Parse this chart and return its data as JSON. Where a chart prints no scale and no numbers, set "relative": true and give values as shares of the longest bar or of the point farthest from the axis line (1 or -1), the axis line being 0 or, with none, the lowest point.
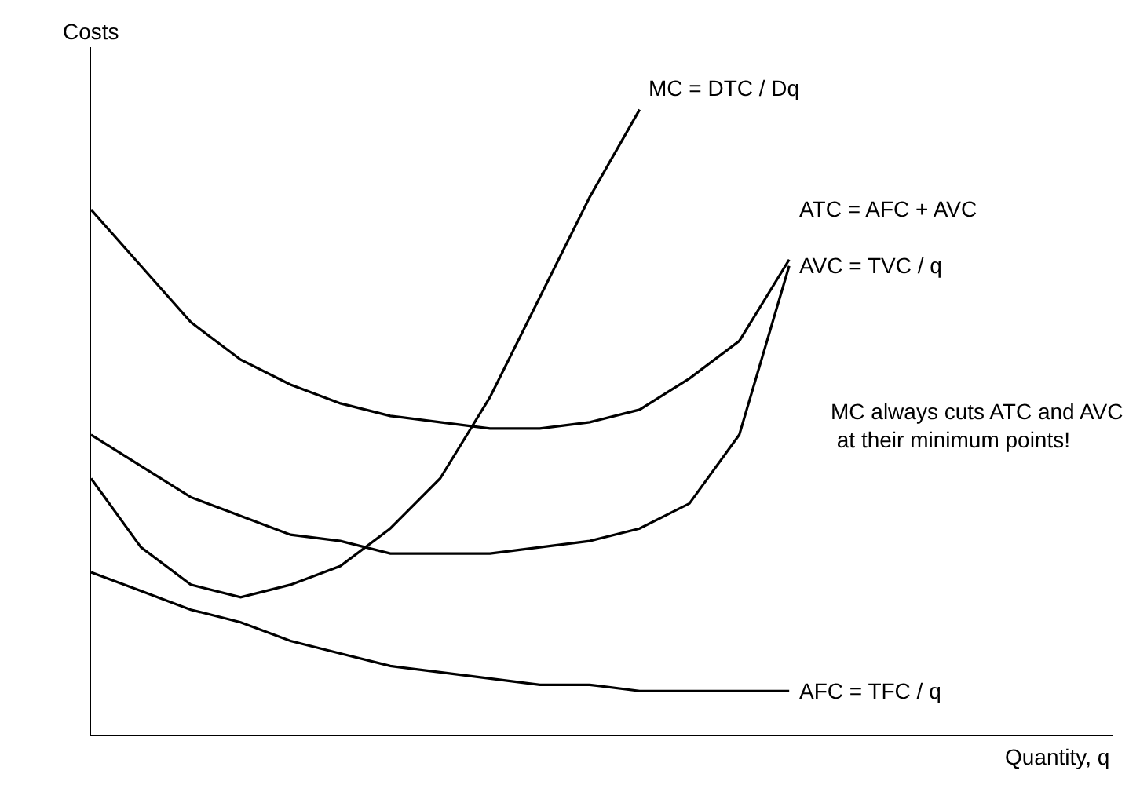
{
  "chart_data": {
    "type": "line",
    "relative": true,
    "ylabel": "Costs",
    "xlabel": "Quantity, q",
    "legend": false,
    "marker": "none",
    "line_style": "solid",
    "categories": [
      null,
      null,
      null,
      null,
      null,
      null,
      null,
      null,
      null,
      null,
      null,
      null,
      null,
      null,
      null,
      null,
      null,
      null,
      null,
      null,
      null
    ],
    "annotations": [
      "MC always cuts ATC and AVC\n at their minimum points!"
    ],
    "series": [
      {
        "name": "MC = DTC / Dq",
        "color": "#000000",
        "values": [
          0.41,
          0.3,
          0.24,
          0.22,
          0.24,
          0.27,
          0.33,
          0.41,
          0.54,
          0.7,
          0.86,
          1,
          null,
          null,
          null,
          null,
          null,
          null,
          null,
          null,
          null
        ]
      },
      {
        "name": "ATC = AFC + AVC",
        "color": "#000000",
        "values": [
          0.84,
          0.75,
          0.66,
          0.6,
          0.56,
          0.53,
          0.51,
          0.5,
          0.49,
          0.49,
          0.5,
          0.52,
          0.57,
          0.63,
          0.76,
          null,
          null,
          null,
          null,
          null,
          null
        ]
      },
      {
        "name": "AVC = TVC / q",
        "color": "#000000",
        "values": [
          0.48,
          0.43,
          0.38,
          0.35,
          0.32,
          0.31,
          0.29,
          0.29,
          0.29,
          0.3,
          0.31,
          0.33,
          0.37,
          0.48,
          0.75,
          null,
          null,
          null,
          null,
          null,
          null
        ]
      },
      {
        "name": "AFC = TFC / q",
        "color": "#000000",
        "values": [
          0.26,
          0.23,
          0.2,
          0.18,
          0.15,
          0.13,
          0.11,
          0.1,
          0.09,
          0.08,
          0.08,
          0.07,
          0.07,
          0.07,
          0.07,
          null,
          null,
          null,
          null,
          null,
          null
        ]
      }
    ]
  }
}
